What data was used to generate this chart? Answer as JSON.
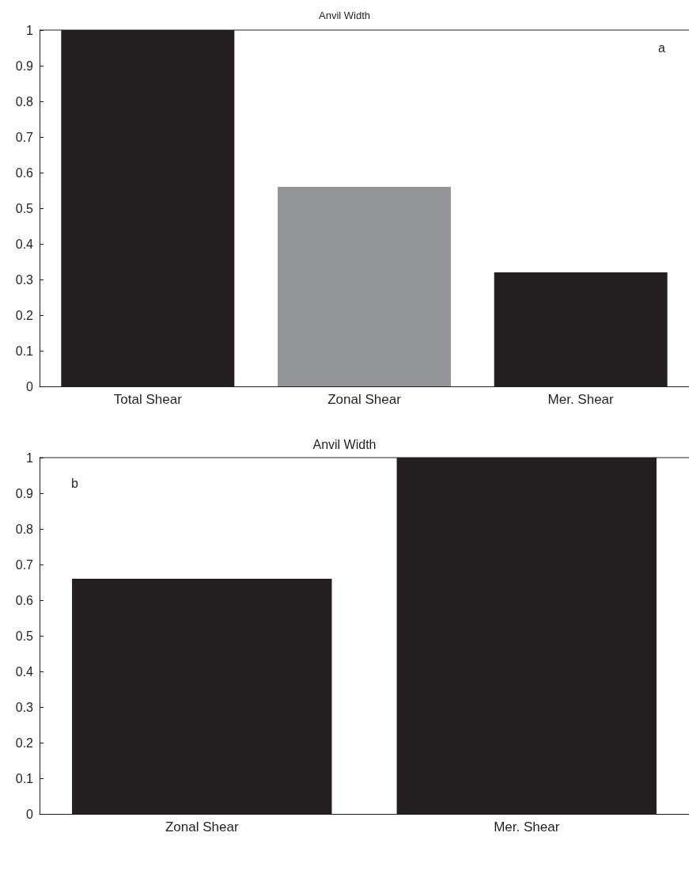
{
  "chart_data": [
    {
      "type": "bar",
      "title": "Anvil Width",
      "categories": [
        "Total Shear",
        "Zonal Shear",
        "Mer. Shear"
      ],
      "values": [
        1,
        0.56,
        0.32
      ],
      "colors": [
        "#231f20",
        "#939598",
        "#231f20"
      ],
      "ylim": [
        0,
        1
      ],
      "yticks": [
        0,
        0.1,
        0.2,
        0.3,
        0.4,
        0.5,
        0.6,
        0.7,
        0.8,
        0.9,
        1
      ],
      "annotations": [
        "a"
      ]
    },
    {
      "type": "bar",
      "title": "Anvil Width",
      "categories": [
        "Zonal Shear",
        "Mer. Shear"
      ],
      "values": [
        0.66,
        1
      ],
      "colors": [
        "#231f20",
        "#231f20"
      ],
      "ylim": [
        0,
        1
      ],
      "yticks": [
        0,
        0.1,
        0.2,
        0.3,
        0.4,
        0.5,
        0.6,
        0.7,
        0.8,
        0.9,
        1
      ],
      "annotations": [
        "b"
      ]
    }
  ]
}
